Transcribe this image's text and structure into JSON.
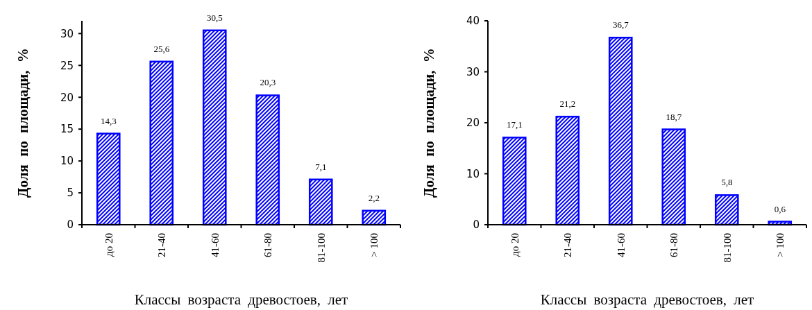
{
  "chart_data": [
    {
      "type": "bar",
      "xlabel": "Классы возраста древостоев, лет",
      "ylabel": "Доля по площади, %",
      "categories": [
        "до 20",
        "21-40",
        "41-60",
        "61-80",
        "81-100",
        "> 100"
      ],
      "values": [
        14.3,
        25.6,
        30.5,
        20.3,
        7.1,
        2.2
      ],
      "value_labels": [
        "14,3",
        "25,6",
        "30,5",
        "20,3",
        "7,1",
        "2,2"
      ],
      "color": "#0000ff",
      "ylim": [
        0,
        32
      ],
      "yticks": [
        0,
        5,
        10,
        15,
        20,
        25,
        30
      ]
    },
    {
      "type": "bar",
      "xlabel": "Классы возраста древостоев, лет",
      "ylabel": "Доля по площади, %",
      "categories": [
        "до 20",
        "21-40",
        "41-60",
        "61-80",
        "81-100",
        "> 100"
      ],
      "values": [
        17.1,
        21.2,
        36.7,
        18.7,
        5.8,
        0.6
      ],
      "value_labels": [
        "17,1",
        "21,2",
        "36,7",
        "18,7",
        "5,8",
        "0,6"
      ],
      "color": "#0000ff",
      "ylim": [
        0,
        40
      ],
      "yticks": [
        0,
        10,
        20,
        30,
        40
      ]
    }
  ]
}
